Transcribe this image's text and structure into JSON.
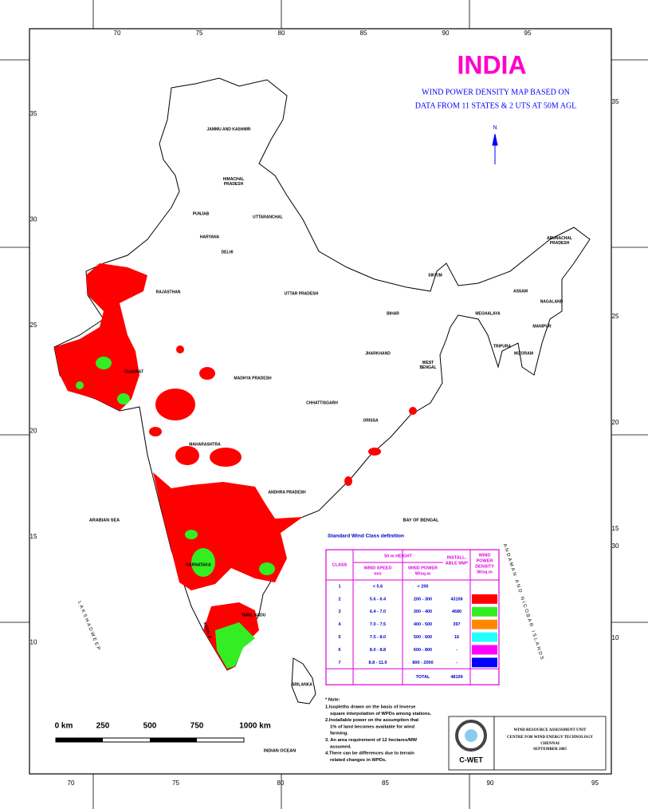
{
  "header": {
    "title": "INDIA",
    "subtitle": [
      "WIND POWER DENSITY MAP BASED ON",
      "DATA FROM 11 STATES & 2 UTS AT 50M AGL"
    ],
    "north": "N"
  },
  "graticule": {
    "top": [
      70,
      75,
      80,
      85,
      90,
      95
    ],
    "bottom": [
      70,
      75,
      80,
      85,
      90,
      95
    ],
    "left": [
      35,
      30,
      25,
      20,
      15,
      10
    ],
    "right": [
      35,
      25,
      20,
      15,
      30,
      10
    ]
  },
  "labels": [
    "JAMMU AND KASHMIR",
    [
      "HIMACHAL",
      "PRADESH"
    ],
    "PUNJAB",
    "UTTARANCHAL",
    "HARYANA",
    "DELHI",
    "RAJASTHAN",
    "UTTAR PRADESH",
    "SIKKIM",
    [
      "ARUNACHAL",
      "PRADESH"
    ],
    "ASSAM",
    "NAGALAND",
    "MEGHALAYA",
    "BIHAR",
    "MANIPUR",
    "TRIPURA",
    "MIZORAM",
    "JHARKHAND",
    [
      "WEST",
      "BENGAL"
    ],
    "GUJARAT",
    "MADHYA PRADESH",
    "CHHATTISGARH",
    "ORISSA",
    "MAHARASHTRA",
    "ANDHRA PRADESH",
    "ARABIAN SEA",
    "BAY OF BENGAL",
    "KARNATAKA",
    "TAMIL NADU",
    "KERALA",
    "LAKSHADWEEP",
    "SRILANKA",
    "INDIAN OCEAN",
    "ANDAMAN AND NICOBAR ISLANDS"
  ],
  "legend": {
    "caption": "Standard Wind Class definition",
    "headers": {
      "class": "CLASS",
      "height": "50 m HEIGHT",
      "speed": [
        "WIND SPEED",
        "m/s"
      ],
      "power": [
        "WIND POWER",
        "W/sq.m"
      ],
      "mw": [
        "INSTALL-",
        "ABLE MW*"
      ],
      "density": [
        "WIND",
        "POWER",
        "DENSITY",
        "W/sq.m"
      ]
    },
    "rows": [
      {
        "class": 1,
        "speed": "< 5.6",
        "power": "< 200"
      },
      {
        "class": 2,
        "speed": "5.6 - 6.4",
        "power": "200 - 300",
        "mw": 43106,
        "color": "#ff0000"
      },
      {
        "class": 3,
        "speed": "6.4 - 7.0",
        "power": "300 - 400",
        "mw": 4680,
        "color": "#33ee22"
      },
      {
        "class": 4,
        "speed": "7.0 - 7.5",
        "power": "400 - 500",
        "mw": 397,
        "color": "#ff8800"
      },
      {
        "class": 5,
        "speed": "7.5 - 8.0",
        "power": "500 - 600",
        "mw": 16,
        "color": "#22ffff"
      },
      {
        "class": 6,
        "speed": "8.0 - 8.8",
        "power": "600 - 800",
        "mw": "-",
        "color": "#ff00ff"
      },
      {
        "class": 7,
        "speed": "8.8 - 11.9",
        "power": "800 - 2000",
        "mw": "-",
        "color": "#0000ff"
      }
    ],
    "total": {
      "label": "TOTAL",
      "value": 48199
    }
  },
  "notes": {
    "heading": "* Note:",
    "items": [
      [
        "1.Isopleths drawn on the basis of Inverse",
        "square interpolation of WPDs among stations."
      ],
      [
        "2.Installable power on the assumption that",
        "1% of land becomes available for wind",
        "farming."
      ],
      [
        "3. An area requirement of 12 hectares/MW",
        "assumed."
      ],
      [
        "4.There can be differences due to terrain",
        "related changes in WPDs."
      ]
    ]
  },
  "scale": [
    "0 km",
    "250",
    "500",
    "750",
    "1000 km"
  ],
  "credits": {
    "logo": "C-WET",
    "lines": [
      "WIND RESOURCE ASSESSMENT UNIT",
      "CENTRE FOR WIND ENERGY TECHNOLOGY",
      "CHENNAI",
      "SEPTEMBER 2005"
    ]
  }
}
